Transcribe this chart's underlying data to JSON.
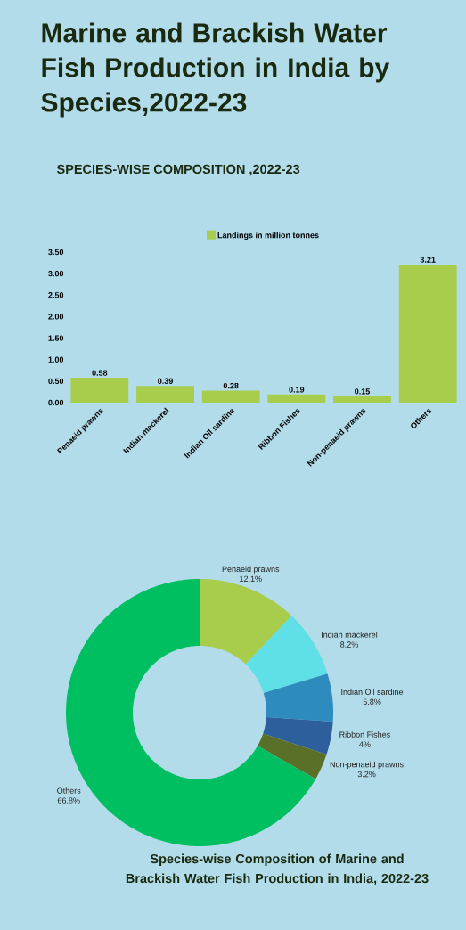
{
  "chart_data": [
    {
      "type": "bar",
      "title": "Marine and Brackish Water Fish Production in India by Species,2022-23",
      "subtitle": "SPECIES-WISE COMPOSITION ,2022-23",
      "categories": [
        "Penaeid prawns",
        "Indian mackerel",
        "Indian Oil sardine",
        "Ribbon Fishes",
        "Non-penaeid prawns",
        "Others"
      ],
      "series": [
        {
          "name": "Landings in million tonnes",
          "color": "#a8cc4c",
          "values": [
            0.58,
            0.39,
            0.28,
            0.19,
            0.15,
            3.21
          ],
          "value_labels": [
            "0.58",
            "0.39",
            "0.28",
            "0.19",
            "0.15",
            "3.21"
          ]
        }
      ],
      "ylim": [
        0,
        3.5
      ],
      "yticks": [
        {
          "value": 0,
          "label": "0.00"
        },
        {
          "value": 0.5,
          "label": "0.50"
        },
        {
          "value": 1,
          "label": "1.00"
        },
        {
          "value": 1.5,
          "label": "1.50"
        },
        {
          "value": 2,
          "label": "2.00"
        },
        {
          "value": 2.5,
          "label": "2.50"
        },
        {
          "value": 3,
          "label": "3.00"
        },
        {
          "value": 3.5,
          "label": "3.50"
        }
      ],
      "legend": "top"
    },
    {
      "type": "donut",
      "title": "Species-wise Composition of Marine and Brackish Water Fish Production  in India, 2022-23",
      "categories": [
        "Penaeid prawns",
        "Indian mackerel",
        "Indian Oil sardine",
        "Ribbon Fishes",
        "Non-penaeid prawns",
        "Others"
      ],
      "values": [
        12.1,
        8.2,
        5.8,
        4,
        3.2,
        66.8
      ],
      "value_labels": [
        "12.1%",
        "8.2%",
        "5.8%",
        "4%",
        "3.2%",
        "66.8%"
      ],
      "colors": [
        "#a8cc4c",
        "#5fe0e6",
        "#2e8bbd",
        "#2c5f9c",
        "#5a7028",
        "#00bf60"
      ]
    }
  ]
}
